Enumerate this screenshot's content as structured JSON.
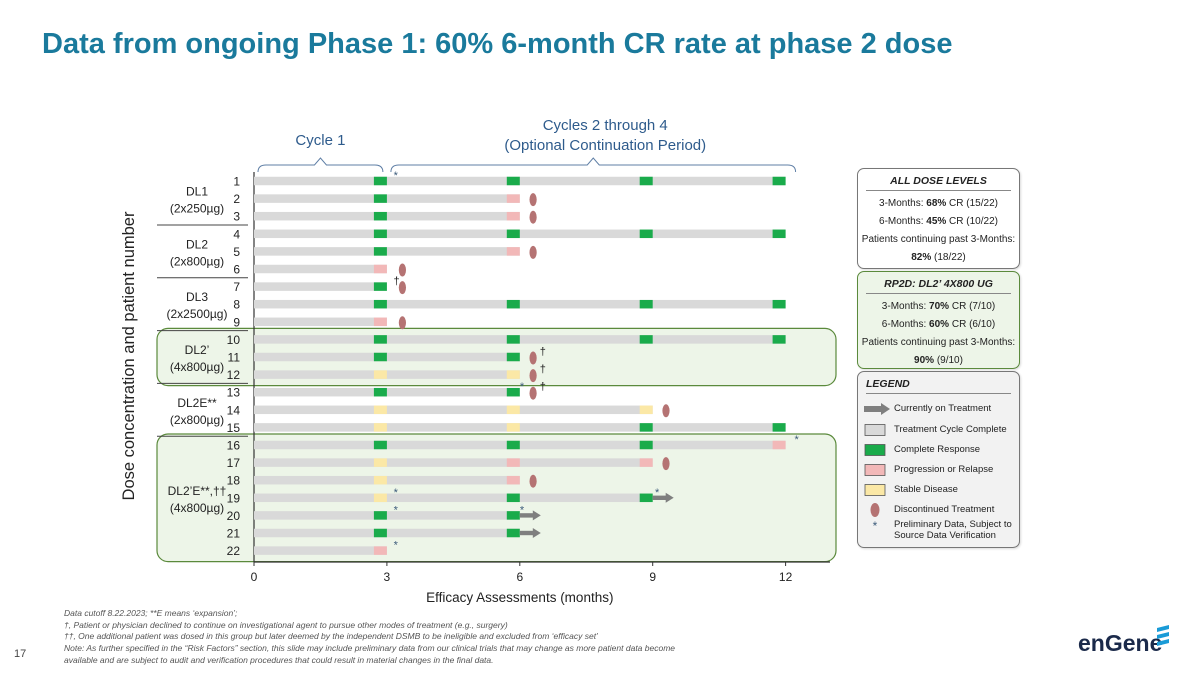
{
  "title": "Data from ongoing Phase 1: 60% 6-month CR rate at phase 2 dose",
  "page_number": "17",
  "logo_text": "enGene",
  "colors": {
    "title": "#1a7a9c",
    "treatment": "#d9d9d9",
    "complete_response": "#1aab4b",
    "progression": "#f2b8b8",
    "stable_disease": "#fbe8a6",
    "discontinued": "#b57373",
    "group_highlight_fill": "#edf5e8",
    "group_highlight_border": "#5b8a3c"
  },
  "annotations": {
    "cycle1": "Cycle 1",
    "cycles2_4_line1": "Cycles 2 through 4",
    "cycles2_4_line2": "(Optional Continuation Period)"
  },
  "boxes": {
    "all": {
      "title": "ALL DOSE LEVELS",
      "m3_prefix": "3-Months: ",
      "m3_pct": "68%",
      "m3_suffix": " CR (15/22)",
      "m6_prefix": "6-Months: ",
      "m6_pct": "45%",
      "m6_suffix": " CR (10/22)",
      "cont_label": "Patients continuing past 3-Months:",
      "cont_pct": "82%",
      "cont_suffix": " (18/22)"
    },
    "rp2d": {
      "title": "RP2D: DL2’ 4X800 UG",
      "m3_prefix": "3-Months: ",
      "m3_pct": "70%",
      "m3_suffix": " CR (7/10)",
      "m6_prefix": "6-Months: ",
      "m6_pct": "60%",
      "m6_suffix": " CR (6/10)",
      "cont_label": "Patients continuing past 3-Months:",
      "cont_pct": "90%",
      "cont_suffix": " (9/10)"
    }
  },
  "legend": {
    "title": "LEGEND",
    "items": [
      {
        "label": "Currently on Treatment",
        "symbol": "arrow-icon"
      },
      {
        "label": "Treatment Cycle Complete",
        "symbol": "gray-box-icon"
      },
      {
        "label": "Complete Response",
        "symbol": "green-box-icon"
      },
      {
        "label": "Progression or Relapse",
        "symbol": "pink-box-icon"
      },
      {
        "label": "Stable Disease",
        "symbol": "yellow-box-icon"
      },
      {
        "label": "Discontinued Treatment",
        "symbol": "oval-icon"
      },
      {
        "label": "Preliminary Data, Subject to Source Data Verification",
        "symbol": "asterisk-icon"
      }
    ]
  },
  "footnotes": [
    "Data cutoff 8.22.2023; **E means ‘expansion’;",
    "†, Patient or physician declined to continue on investigational agent to pursue other modes of treatment (e.g., surgery)",
    "††, One additional patient was dosed in this group but later deemed by the independent DSMB to be ineligible and excluded from ‘efficacy set’",
    "Note: As further specified in the “Risk Factors” section, this slide may include preliminary data from our clinical trials that may change as more patient data become",
    "available and are subject to audit and verification procedures that could result in material changes in the final data."
  ],
  "chart_data": {
    "type": "swimmer",
    "xlabel": "Efficacy Assessments (months)",
    "ylabel": "Dose concentration and patient number",
    "xlim": [
      0,
      13
    ],
    "xticks": [
      0,
      3,
      6,
      9,
      12
    ],
    "groups": [
      {
        "name": "DL1",
        "dose": "(2x250µg)",
        "patients": [
          1,
          2,
          3
        ],
        "highlighted": false
      },
      {
        "name": "DL2",
        "dose": "(2x800µg)",
        "patients": [
          4,
          5,
          6
        ],
        "highlighted": false
      },
      {
        "name": "DL3",
        "dose": "(2x2500µg)",
        "patients": [
          7,
          8,
          9
        ],
        "highlighted": false
      },
      {
        "name": "DL2’",
        "dose": "(4x800µg)",
        "patients": [
          10,
          11,
          12
        ],
        "highlighted": true
      },
      {
        "name": "DL2E**",
        "dose": "(2x800µg)",
        "patients": [
          13,
          14,
          15
        ],
        "highlighted": false
      },
      {
        "name": "DL2’E**,††",
        "dose": "(4x800µg)",
        "patients": [
          16,
          17,
          18,
          19,
          20,
          21,
          22
        ],
        "highlighted": true
      }
    ],
    "patients": [
      {
        "id": 1,
        "end": 12,
        "arrow": false,
        "responses": {
          "3": "CR",
          "6": "CR",
          "9": "CR",
          "12": "CR"
        },
        "discontinued": null,
        "dagger_at": null,
        "asterisks": [
          3.2
        ]
      },
      {
        "id": 2,
        "end": 6,
        "arrow": false,
        "responses": {
          "3": "CR",
          "6": "PR"
        },
        "discontinued": 6.3,
        "dagger_at": null,
        "asterisks": []
      },
      {
        "id": 3,
        "end": 6,
        "arrow": false,
        "responses": {
          "3": "CR",
          "6": "PR"
        },
        "discontinued": 6.3,
        "dagger_at": null,
        "asterisks": []
      },
      {
        "id": 4,
        "end": 12,
        "arrow": false,
        "responses": {
          "3": "CR",
          "6": "CR",
          "9": "CR",
          "12": "CR"
        },
        "discontinued": null,
        "dagger_at": null,
        "asterisks": []
      },
      {
        "id": 5,
        "end": 6,
        "arrow": false,
        "responses": {
          "3": "CR",
          "6": "PR"
        },
        "discontinued": 6.3,
        "dagger_at": null,
        "asterisks": []
      },
      {
        "id": 6,
        "end": 3,
        "arrow": false,
        "responses": {
          "3": "PR"
        },
        "discontinued": 3.35,
        "dagger_at": null,
        "asterisks": []
      },
      {
        "id": 7,
        "end": 3,
        "arrow": false,
        "responses": {
          "3": "CR"
        },
        "discontinued": 3.35,
        "dagger_at": 3.15,
        "asterisks": []
      },
      {
        "id": 8,
        "end": 12,
        "arrow": false,
        "responses": {
          "3": "CR",
          "6": "CR",
          "9": "CR",
          "12": "CR"
        },
        "discontinued": null,
        "dagger_at": null,
        "asterisks": []
      },
      {
        "id": 9,
        "end": 3,
        "arrow": false,
        "responses": {
          "3": "PR"
        },
        "discontinued": 3.35,
        "dagger_at": null,
        "asterisks": []
      },
      {
        "id": 10,
        "end": 12,
        "arrow": false,
        "responses": {
          "3": "CR",
          "6": "CR",
          "9": "CR",
          "12": "CR"
        },
        "discontinued": null,
        "dagger_at": null,
        "asterisks": []
      },
      {
        "id": 11,
        "end": 6,
        "arrow": false,
        "responses": {
          "3": "CR",
          "6": "CR"
        },
        "discontinued": 6.3,
        "dagger_at": 6.45,
        "asterisks": []
      },
      {
        "id": 12,
        "end": 6,
        "arrow": false,
        "responses": {
          "3": "SD",
          "6": "SD"
        },
        "discontinued": 6.3,
        "dagger_at": 6.45,
        "asterisks": []
      },
      {
        "id": 13,
        "end": 6,
        "arrow": false,
        "responses": {
          "3": "CR",
          "6": "CR"
        },
        "discontinued": 6.3,
        "dagger_at": 6.45,
        "asterisks": [
          6.05
        ]
      },
      {
        "id": 14,
        "end": 9,
        "arrow": false,
        "responses": {
          "3": "SD",
          "6": "SD",
          "9": "SD"
        },
        "discontinued": 9.3,
        "dagger_at": null,
        "asterisks": []
      },
      {
        "id": 15,
        "end": 12,
        "arrow": false,
        "responses": {
          "3": "SD",
          "6": "SD",
          "9": "CR",
          "12": "CR"
        },
        "discontinued": null,
        "dagger_at": null,
        "asterisks": []
      },
      {
        "id": 16,
        "end": 12,
        "arrow": false,
        "responses": {
          "3": "CR",
          "6": "CR",
          "9": "CR",
          "12": "PR"
        },
        "discontinued": null,
        "dagger_at": null,
        "asterisks": [
          12.25
        ]
      },
      {
        "id": 17,
        "end": 9,
        "arrow": false,
        "responses": {
          "3": "SD",
          "6": "PR",
          "9": "PR"
        },
        "discontinued": 9.3,
        "dagger_at": null,
        "asterisks": []
      },
      {
        "id": 18,
        "end": 6,
        "arrow": false,
        "responses": {
          "3": "SD",
          "6": "PR"
        },
        "discontinued": 6.3,
        "dagger_at": null,
        "asterisks": []
      },
      {
        "id": 19,
        "end": 9,
        "arrow": true,
        "responses": {
          "3": "SD",
          "6": "CR",
          "9": "CR"
        },
        "discontinued": null,
        "dagger_at": null,
        "asterisks": [
          3.2,
          9.1
        ]
      },
      {
        "id": 20,
        "end": 6,
        "arrow": true,
        "responses": {
          "3": "CR",
          "6": "CR"
        },
        "discontinued": null,
        "dagger_at": null,
        "asterisks": [
          3.2,
          6.05
        ]
      },
      {
        "id": 21,
        "end": 6,
        "arrow": true,
        "responses": {
          "3": "CR",
          "6": "CR"
        },
        "discontinued": null,
        "dagger_at": null,
        "asterisks": []
      },
      {
        "id": 22,
        "end": 3,
        "arrow": false,
        "responses": {
          "3": "PR"
        },
        "discontinued": null,
        "dagger_at": null,
        "asterisks": [
          3.2
        ]
      }
    ]
  }
}
